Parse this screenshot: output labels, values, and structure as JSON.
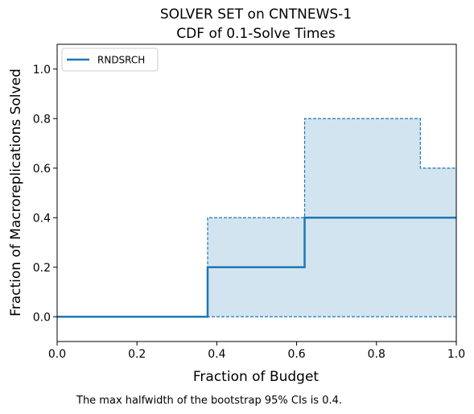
{
  "chart_data": {
    "type": "line",
    "title": "SOLVER SET on CNTNEWS-1",
    "subtitle": "CDF of 0.1-Solve Times",
    "xlabel": "Fraction of Budget",
    "ylabel": "Fraction of Macroreplications Solved",
    "xlim": [
      0,
      1
    ],
    "ylim": [
      -0.1,
      1.1
    ],
    "xticks": [
      {
        "value": 0.0,
        "label": "0.0"
      },
      {
        "value": 0.2,
        "label": "0.2"
      },
      {
        "value": 0.4,
        "label": "0.4"
      },
      {
        "value": 0.6,
        "label": "0.6"
      },
      {
        "value": 0.8,
        "label": "0.8"
      },
      {
        "value": 1.0,
        "label": "1.0"
      }
    ],
    "yticks": [
      {
        "value": 0.0,
        "label": "0.0"
      },
      {
        "value": 0.2,
        "label": "0.2"
      },
      {
        "value": 0.4,
        "label": "0.4"
      },
      {
        "value": 0.6,
        "label": "0.6"
      },
      {
        "value": 0.8,
        "label": "0.8"
      },
      {
        "value": 1.0,
        "label": "1.0"
      }
    ],
    "grid": false,
    "legend": "top-left",
    "series": [
      {
        "name": "RNDSRCH",
        "color": "#1f77b4",
        "step": true,
        "x": [
          0.0,
          0.377,
          0.62,
          1.0
        ],
        "y": [
          0.0,
          0.2,
          0.4,
          0.4
        ]
      }
    ],
    "confidence_band": {
      "color": "#1f77b4",
      "fill_opacity": 0.2,
      "line_style": "dashed",
      "upper": {
        "x": [
          0.0,
          0.377,
          0.62,
          0.91,
          1.0
        ],
        "y": [
          0.0,
          0.4,
          0.8,
          0.6,
          0.6
        ]
      },
      "lower": {
        "x": [
          0.0,
          1.0
        ],
        "y": [
          0.0,
          0.0
        ]
      }
    },
    "footnote": "The max halfwidth of the bootstrap 95% CIs is 0.4."
  }
}
